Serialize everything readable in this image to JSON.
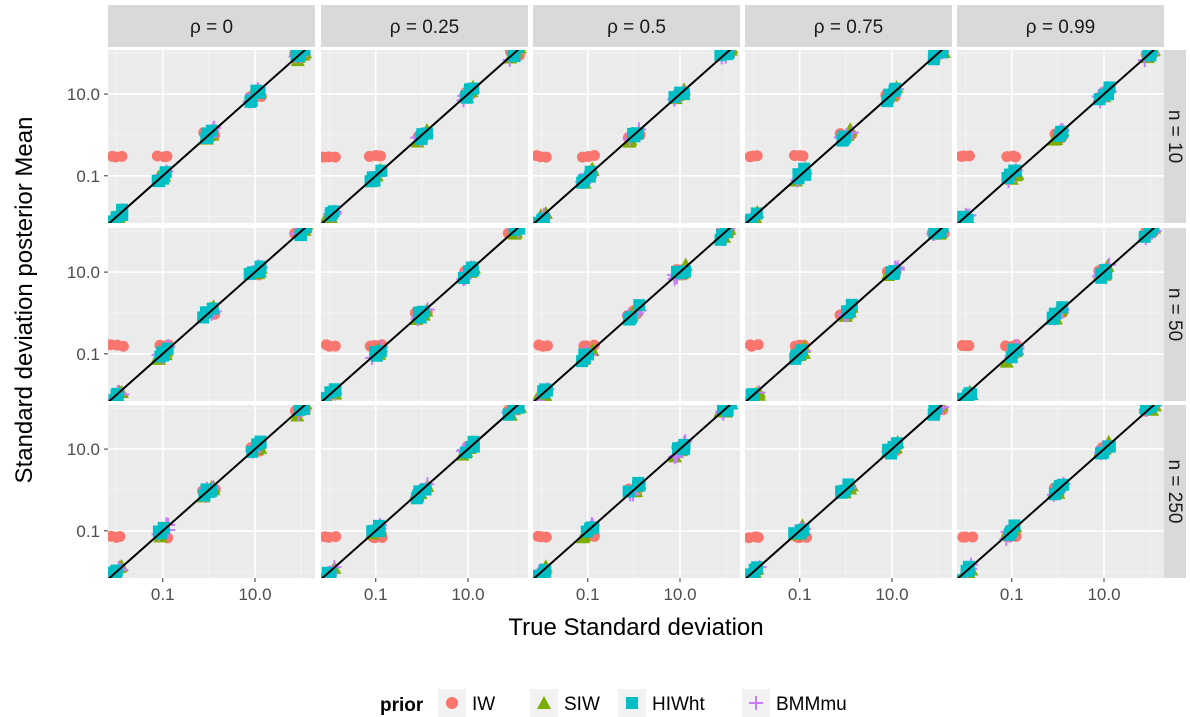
{
  "chart_data": {
    "type": "scatter",
    "xlabel": "True Standard deviation",
    "ylabel": "Standard deviation posterior Mean",
    "x_scale": "log10",
    "y_scale": "log10",
    "xlim": [
      0.0065,
      200
    ],
    "ylim": [
      0.007,
      120
    ],
    "x_ticks": [
      {
        "value": 0.1,
        "label": "0.1"
      },
      {
        "value": 10,
        "label": "10.0"
      }
    ],
    "y_ticks": [
      {
        "value": 0.1,
        "label": "0.1"
      },
      {
        "value": 10,
        "label": "10.0"
      }
    ],
    "grid": true,
    "reference_line": "y = x",
    "col_facets": [
      "ρ = 0",
      "ρ = 0.25",
      "ρ = 0.5",
      "ρ = 0.75",
      "ρ = 0.99"
    ],
    "row_facets": [
      "n = 10",
      "n = 50",
      "n = 250"
    ],
    "true_sd_levels": [
      0.01,
      0.1,
      1,
      10,
      100
    ],
    "legend": {
      "title": "prior",
      "placement": "bottom",
      "entries": [
        {
          "name": "IW",
          "shape": "circle",
          "color": "#F8766D"
        },
        {
          "name": "SIW",
          "shape": "triangle",
          "color": "#7CAE00"
        },
        {
          "name": "HIWht",
          "shape": "square",
          "color": "#00BFC4"
        },
        {
          "name": "BMMmu",
          "shape": "plus",
          "color": "#C77CFF"
        }
      ]
    },
    "iw_floor_by_n": [
      {
        "n": "n = 10",
        "value": 0.3
      },
      {
        "n": "n = 50",
        "value": 0.16
      },
      {
        "n": "n = 250",
        "value": 0.07
      }
    ],
    "series": [
      {
        "name": "IW",
        "points": [
          [
            0.01,
            0.3
          ],
          [
            0.011,
            0.3
          ],
          [
            0.013,
            0.3
          ],
          [
            0.1,
            0.3
          ],
          [
            0.12,
            0.3
          ],
          [
            0.08,
            0.3
          ],
          [
            0.01,
            0.16
          ],
          [
            0.013,
            0.16
          ],
          [
            0.08,
            0.17
          ],
          [
            0.1,
            0.17
          ],
          [
            0.12,
            0.17
          ],
          [
            0.01,
            0.07
          ],
          [
            0.012,
            0.07
          ],
          [
            0.013,
            0.07
          ],
          [
            0.08,
            0.1
          ],
          [
            0.1,
            0.1
          ],
          [
            0.8,
            0.9
          ],
          [
            1,
            1
          ],
          [
            1.2,
            1.1
          ],
          [
            8,
            7
          ],
          [
            10,
            9
          ],
          [
            12,
            11
          ],
          [
            80,
            80
          ],
          [
            100,
            95
          ],
          [
            120,
            110
          ]
        ]
      },
      {
        "name": "SIW",
        "points": [
          [
            0.01,
            0.012
          ],
          [
            0.012,
            0.011
          ],
          [
            0.1,
            0.11
          ],
          [
            0.09,
            0.12
          ],
          [
            0.12,
            0.1
          ],
          [
            1,
            1.1
          ],
          [
            0.9,
            1.2
          ],
          [
            1.2,
            1
          ],
          [
            10,
            11
          ],
          [
            9,
            10
          ],
          [
            12,
            12
          ],
          [
            100,
            105
          ],
          [
            110,
            120
          ],
          [
            90,
            95
          ]
        ]
      },
      {
        "name": "HIWht",
        "points": [
          [
            0.01,
            0.01
          ],
          [
            0.011,
            0.01
          ],
          [
            0.013,
            0.011
          ],
          [
            0.1,
            0.1
          ],
          [
            0.09,
            0.1
          ],
          [
            0.12,
            0.1
          ],
          [
            1,
            1
          ],
          [
            0.9,
            0.95
          ],
          [
            1.2,
            1.05
          ],
          [
            10,
            10
          ],
          [
            9,
            9.5
          ],
          [
            12,
            10.5
          ],
          [
            100,
            100
          ],
          [
            90,
            95
          ],
          [
            120,
            105
          ]
        ]
      },
      {
        "name": "BMMmu",
        "points": [
          [
            0.01,
            0.01
          ],
          [
            0.013,
            0.009
          ],
          [
            0.1,
            0.1
          ],
          [
            0.11,
            0.09
          ],
          [
            0.12,
            0.11
          ],
          [
            1,
            1
          ],
          [
            0.8,
            1.1
          ],
          [
            1.1,
            0.9
          ],
          [
            10,
            10
          ],
          [
            8,
            11
          ],
          [
            11,
            9
          ],
          [
            100,
            100
          ],
          [
            130,
            95
          ],
          [
            90,
            110
          ]
        ]
      }
    ]
  }
}
